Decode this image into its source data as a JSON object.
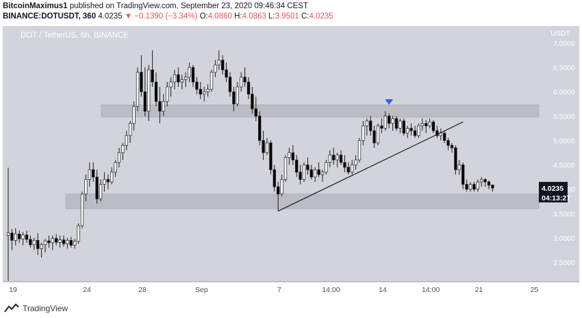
{
  "header": {
    "author": "BitcoinMaximus1",
    "published_text": " published on TradingView.com, September 23, 2020 09:46:34 CEST",
    "symbol": "BINANCE:DOTUSDT, 360",
    "last": "4.0235",
    "arrow": "▼",
    "change": "−0.1390 (−3.34%)",
    "o_label": "O:",
    "o": "4.0860",
    "h_label": "H:",
    "h": "4.0863",
    "l_label": "L:",
    "l": "3.9501",
    "c_label": "C:",
    "c": "4.0235"
  },
  "legend_title": "DOT / TetherUS, 6h, BINANCE",
  "currency_label": "USDT",
  "price_tag": "4.0235",
  "countdown_tag": "04:13:27",
  "footer": {
    "brand": "TradingView"
  },
  "colors": {
    "plot_bg": "#d2d4dc",
    "candle_up": "#ffffff",
    "candle_down": "#000000",
    "wick": "#1c1c1c",
    "zone": "#b3b5bd",
    "marker": "#2962ff",
    "price_tag_bg": "#131722"
  },
  "chart_data": {
    "type": "candlestick",
    "symbol": "DOTUSDT",
    "interval": "6h",
    "y_scale": "linear",
    "ylim": [
      2.1,
      7.35
    ],
    "y_ticks": [
      "7.0000",
      "6.5000",
      "6.0000",
      "5.5000",
      "5.0000",
      "4.5000",
      "4.0000",
      "3.5000",
      "3.0000",
      "2.5000"
    ],
    "x_ticks": [
      "19",
      "24",
      "28",
      "Sep",
      "7",
      "14:00",
      "14",
      "14:00",
      "21",
      "25"
    ],
    "last_price": 4.0235,
    "horizontal_zones": [
      {
        "from": 5.48,
        "to": 5.73
      },
      {
        "from": 3.6,
        "to": 3.9
      }
    ],
    "trendline": {
      "from_price": 3.55,
      "to_price": 5.38
    },
    "marker": {
      "type": "down-triangle",
      "price": 5.79
    },
    "candles": [
      {
        "o": 3.05,
        "h": 4.44,
        "l": 2.12,
        "c": 3.1
      },
      {
        "o": 3.1,
        "h": 3.18,
        "l": 2.75,
        "c": 2.95
      },
      {
        "o": 2.95,
        "h": 3.2,
        "l": 2.85,
        "c": 3.08
      },
      {
        "o": 3.08,
        "h": 3.15,
        "l": 2.9,
        "c": 2.98
      },
      {
        "o": 2.98,
        "h": 3.12,
        "l": 2.85,
        "c": 3.06
      },
      {
        "o": 3.06,
        "h": 3.15,
        "l": 2.9,
        "c": 2.97
      },
      {
        "o": 2.97,
        "h": 3.05,
        "l": 2.8,
        "c": 2.86
      },
      {
        "o": 2.86,
        "h": 3.0,
        "l": 2.75,
        "c": 2.95
      },
      {
        "o": 2.95,
        "h": 3.1,
        "l": 2.65,
        "c": 2.78
      },
      {
        "o": 2.78,
        "h": 2.9,
        "l": 2.6,
        "c": 2.86
      },
      {
        "o": 2.86,
        "h": 2.98,
        "l": 2.7,
        "c": 2.94
      },
      {
        "o": 2.94,
        "h": 3.05,
        "l": 2.8,
        "c": 2.9
      },
      {
        "o": 2.9,
        "h": 3.05,
        "l": 2.75,
        "c": 2.99
      },
      {
        "o": 2.99,
        "h": 3.08,
        "l": 2.85,
        "c": 2.91
      },
      {
        "o": 2.91,
        "h": 3.05,
        "l": 2.8,
        "c": 2.96
      },
      {
        "o": 2.96,
        "h": 3.05,
        "l": 2.82,
        "c": 2.88
      },
      {
        "o": 2.88,
        "h": 3.0,
        "l": 2.78,
        "c": 2.95
      },
      {
        "o": 2.95,
        "h": 3.02,
        "l": 2.8,
        "c": 2.85
      },
      {
        "o": 2.85,
        "h": 2.98,
        "l": 2.78,
        "c": 2.93
      },
      {
        "o": 2.93,
        "h": 3.3,
        "l": 2.88,
        "c": 3.25
      },
      {
        "o": 3.25,
        "h": 3.95,
        "l": 3.2,
        "c": 3.9
      },
      {
        "o": 3.9,
        "h": 4.3,
        "l": 3.75,
        "c": 4.2
      },
      {
        "o": 4.2,
        "h": 4.55,
        "l": 4.05,
        "c": 4.4
      },
      {
        "o": 4.4,
        "h": 4.55,
        "l": 4.15,
        "c": 4.25
      },
      {
        "o": 4.25,
        "h": 4.4,
        "l": 3.7,
        "c": 3.8
      },
      {
        "o": 3.8,
        "h": 4.2,
        "l": 3.75,
        "c": 4.1
      },
      {
        "o": 4.1,
        "h": 4.35,
        "l": 3.95,
        "c": 4.2
      },
      {
        "o": 4.2,
        "h": 4.3,
        "l": 4.0,
        "c": 4.15
      },
      {
        "o": 4.15,
        "h": 4.45,
        "l": 4.1,
        "c": 4.35
      },
      {
        "o": 4.35,
        "h": 4.6,
        "l": 4.25,
        "c": 4.55
      },
      {
        "o": 4.55,
        "h": 4.85,
        "l": 4.45,
        "c": 4.75
      },
      {
        "o": 4.75,
        "h": 4.95,
        "l": 4.6,
        "c": 4.9
      },
      {
        "o": 4.9,
        "h": 5.2,
        "l": 4.8,
        "c": 5.1
      },
      {
        "o": 5.1,
        "h": 5.4,
        "l": 4.95,
        "c": 5.35
      },
      {
        "o": 5.35,
        "h": 5.8,
        "l": 5.2,
        "c": 5.7
      },
      {
        "o": 5.7,
        "h": 6.5,
        "l": 5.6,
        "c": 6.4
      },
      {
        "o": 6.4,
        "h": 6.75,
        "l": 5.9,
        "c": 6.0
      },
      {
        "o": 6.0,
        "h": 6.5,
        "l": 5.5,
        "c": 5.6
      },
      {
        "o": 5.6,
        "h": 6.55,
        "l": 5.4,
        "c": 6.45
      },
      {
        "o": 6.45,
        "h": 6.85,
        "l": 6.1,
        "c": 6.2
      },
      {
        "o": 6.2,
        "h": 6.4,
        "l": 5.7,
        "c": 5.8
      },
      {
        "o": 5.8,
        "h": 6.1,
        "l": 5.35,
        "c": 5.6
      },
      {
        "o": 5.6,
        "h": 5.95,
        "l": 5.5,
        "c": 5.8
      },
      {
        "o": 5.8,
        "h": 6.2,
        "l": 5.7,
        "c": 6.1
      },
      {
        "o": 6.1,
        "h": 6.3,
        "l": 5.9,
        "c": 6.2
      },
      {
        "o": 6.2,
        "h": 6.45,
        "l": 6.05,
        "c": 6.35
      },
      {
        "o": 6.35,
        "h": 6.5,
        "l": 6.1,
        "c": 6.2
      },
      {
        "o": 6.2,
        "h": 6.35,
        "l": 6.05,
        "c": 6.25
      },
      {
        "o": 6.25,
        "h": 6.4,
        "l": 6.1,
        "c": 6.3
      },
      {
        "o": 6.3,
        "h": 6.6,
        "l": 6.2,
        "c": 6.5
      },
      {
        "o": 6.5,
        "h": 6.55,
        "l": 6.1,
        "c": 6.2
      },
      {
        "o": 6.2,
        "h": 6.3,
        "l": 5.95,
        "c": 6.05
      },
      {
        "o": 6.05,
        "h": 6.2,
        "l": 5.85,
        "c": 5.95
      },
      {
        "o": 5.95,
        "h": 6.1,
        "l": 5.8,
        "c": 6.0
      },
      {
        "o": 6.0,
        "h": 6.15,
        "l": 5.9,
        "c": 6.05
      },
      {
        "o": 6.05,
        "h": 6.45,
        "l": 6.0,
        "c": 6.4
      },
      {
        "o": 6.4,
        "h": 6.65,
        "l": 6.3,
        "c": 6.55
      },
      {
        "o": 6.55,
        "h": 6.85,
        "l": 6.45,
        "c": 6.65
      },
      {
        "o": 6.65,
        "h": 6.75,
        "l": 6.35,
        "c": 6.45
      },
      {
        "o": 6.45,
        "h": 6.6,
        "l": 6.2,
        "c": 6.3
      },
      {
        "o": 6.3,
        "h": 6.4,
        "l": 5.9,
        "c": 6.0
      },
      {
        "o": 6.0,
        "h": 6.1,
        "l": 5.6,
        "c": 5.75
      },
      {
        "o": 5.75,
        "h": 6.2,
        "l": 5.7,
        "c": 6.1
      },
      {
        "o": 6.1,
        "h": 6.4,
        "l": 6.0,
        "c": 6.3
      },
      {
        "o": 6.3,
        "h": 6.5,
        "l": 6.1,
        "c": 6.2
      },
      {
        "o": 6.2,
        "h": 6.3,
        "l": 5.85,
        "c": 5.95
      },
      {
        "o": 5.95,
        "h": 6.1,
        "l": 5.55,
        "c": 5.65
      },
      {
        "o": 5.65,
        "h": 5.9,
        "l": 5.4,
        "c": 5.5
      },
      {
        "o": 5.5,
        "h": 5.6,
        "l": 4.9,
        "c": 5.0
      },
      {
        "o": 5.0,
        "h": 5.2,
        "l": 4.6,
        "c": 4.75
      },
      {
        "o": 4.75,
        "h": 5.05,
        "l": 4.7,
        "c": 4.95
      },
      {
        "o": 4.95,
        "h": 5.0,
        "l": 4.3,
        "c": 4.4
      },
      {
        "o": 4.4,
        "h": 4.5,
        "l": 3.95,
        "c": 4.05
      },
      {
        "o": 4.05,
        "h": 4.15,
        "l": 3.55,
        "c": 3.9
      },
      {
        "o": 3.9,
        "h": 4.3,
        "l": 3.85,
        "c": 4.2
      },
      {
        "o": 4.2,
        "h": 4.7,
        "l": 4.15,
        "c": 4.65
      },
      {
        "o": 4.65,
        "h": 4.85,
        "l": 4.5,
        "c": 4.75
      },
      {
        "o": 4.75,
        "h": 4.9,
        "l": 4.5,
        "c": 4.6
      },
      {
        "o": 4.6,
        "h": 4.7,
        "l": 4.25,
        "c": 4.35
      },
      {
        "o": 4.35,
        "h": 4.5,
        "l": 4.1,
        "c": 4.2
      },
      {
        "o": 4.2,
        "h": 4.55,
        "l": 4.15,
        "c": 4.5
      },
      {
        "o": 4.5,
        "h": 4.65,
        "l": 4.3,
        "c": 4.4
      },
      {
        "o": 4.4,
        "h": 4.5,
        "l": 4.2,
        "c": 4.25
      },
      {
        "o": 4.25,
        "h": 4.45,
        "l": 4.15,
        "c": 4.4
      },
      {
        "o": 4.4,
        "h": 4.55,
        "l": 4.25,
        "c": 4.3
      },
      {
        "o": 4.3,
        "h": 4.4,
        "l": 4.15,
        "c": 4.35
      },
      {
        "o": 4.35,
        "h": 4.6,
        "l": 4.3,
        "c": 4.55
      },
      {
        "o": 4.55,
        "h": 4.8,
        "l": 4.45,
        "c": 4.7
      },
      {
        "o": 4.7,
        "h": 4.85,
        "l": 4.5,
        "c": 4.6
      },
      {
        "o": 4.6,
        "h": 4.75,
        "l": 4.45,
        "c": 4.7
      },
      {
        "o": 4.7,
        "h": 4.8,
        "l": 4.5,
        "c": 4.55
      },
      {
        "o": 4.55,
        "h": 4.7,
        "l": 4.35,
        "c": 4.45
      },
      {
        "o": 4.45,
        "h": 4.55,
        "l": 4.3,
        "c": 4.35
      },
      {
        "o": 4.35,
        "h": 4.6,
        "l": 4.3,
        "c": 4.5
      },
      {
        "o": 4.5,
        "h": 4.7,
        "l": 4.4,
        "c": 4.6
      },
      {
        "o": 4.6,
        "h": 5.05,
        "l": 4.55,
        "c": 5.0
      },
      {
        "o": 5.0,
        "h": 5.4,
        "l": 4.9,
        "c": 5.3
      },
      {
        "o": 5.3,
        "h": 5.45,
        "l": 5.1,
        "c": 5.4
      },
      {
        "o": 5.4,
        "h": 5.5,
        "l": 5.1,
        "c": 5.2
      },
      {
        "o": 5.2,
        "h": 5.3,
        "l": 4.85,
        "c": 4.95
      },
      {
        "o": 4.95,
        "h": 5.35,
        "l": 4.9,
        "c": 5.3
      },
      {
        "o": 5.3,
        "h": 5.45,
        "l": 5.15,
        "c": 5.25
      },
      {
        "o": 5.25,
        "h": 5.6,
        "l": 5.2,
        "c": 5.5
      },
      {
        "o": 5.5,
        "h": 5.55,
        "l": 5.25,
        "c": 5.35
      },
      {
        "o": 5.35,
        "h": 5.5,
        "l": 5.2,
        "c": 5.45
      },
      {
        "o": 5.45,
        "h": 5.5,
        "l": 5.2,
        "c": 5.25
      },
      {
        "o": 5.25,
        "h": 5.45,
        "l": 5.15,
        "c": 5.4
      },
      {
        "o": 5.4,
        "h": 5.45,
        "l": 5.1,
        "c": 5.15
      },
      {
        "o": 5.15,
        "h": 5.3,
        "l": 5.05,
        "c": 5.25
      },
      {
        "o": 5.25,
        "h": 5.35,
        "l": 5.1,
        "c": 5.2
      },
      {
        "o": 5.2,
        "h": 5.3,
        "l": 5.05,
        "c": 5.1
      },
      {
        "o": 5.1,
        "h": 5.35,
        "l": 5.05,
        "c": 5.3
      },
      {
        "o": 5.3,
        "h": 5.45,
        "l": 5.2,
        "c": 5.35
      },
      {
        "o": 5.35,
        "h": 5.42,
        "l": 5.15,
        "c": 5.3
      },
      {
        "o": 5.3,
        "h": 5.45,
        "l": 5.25,
        "c": 5.38
      },
      {
        "o": 5.38,
        "h": 5.42,
        "l": 5.15,
        "c": 5.2
      },
      {
        "o": 5.2,
        "h": 5.3,
        "l": 5.05,
        "c": 5.1
      },
      {
        "o": 5.1,
        "h": 5.25,
        "l": 5.0,
        "c": 5.15
      },
      {
        "o": 5.15,
        "h": 5.2,
        "l": 4.95,
        "c": 5.0
      },
      {
        "o": 5.0,
        "h": 5.05,
        "l": 4.8,
        "c": 4.9
      },
      {
        "o": 4.9,
        "h": 4.95,
        "l": 4.75,
        "c": 4.85
      },
      {
        "o": 4.85,
        "h": 4.9,
        "l": 4.3,
        "c": 4.4
      },
      {
        "o": 4.4,
        "h": 4.6,
        "l": 4.3,
        "c": 4.5
      },
      {
        "o": 4.5,
        "h": 4.55,
        "l": 4.0,
        "c": 4.1
      },
      {
        "o": 4.1,
        "h": 4.2,
        "l": 3.95,
        "c": 4.0
      },
      {
        "o": 4.0,
        "h": 4.15,
        "l": 3.95,
        "c": 4.1
      },
      {
        "o": 4.1,
        "h": 4.15,
        "l": 3.95,
        "c": 4.0
      },
      {
        "o": 4.0,
        "h": 4.2,
        "l": 3.95,
        "c": 4.15
      },
      {
        "o": 4.15,
        "h": 4.25,
        "l": 4.05,
        "c": 4.2
      },
      {
        "o": 4.2,
        "h": 4.22,
        "l": 4.05,
        "c": 4.15
      },
      {
        "o": 4.15,
        "h": 4.18,
        "l": 4.0,
        "c": 4.08
      },
      {
        "o": 4.086,
        "h": 4.0863,
        "l": 3.9501,
        "c": 4.0235
      }
    ]
  }
}
